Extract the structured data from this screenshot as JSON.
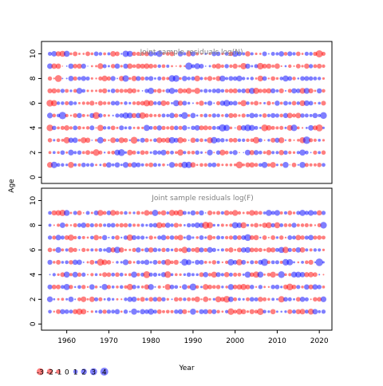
{
  "chart_data": [
    {
      "type": "scatter",
      "title": "Joint sample residuals log(N)",
      "xlabel": "",
      "ylabel": "Age",
      "xlim": [
        1954,
        2023
      ],
      "ylim": [
        -0.5,
        11
      ],
      "y_ticks": [
        "0",
        "2",
        "4",
        "6",
        "8",
        "10"
      ],
      "x_range_data": [
        1956,
        2021
      ],
      "ages": [
        1,
        2,
        3,
        4,
        5,
        6,
        7,
        8,
        9,
        10
      ],
      "encoding": "circle area proportional to |residual|; red = negative, blue = positive",
      "seed": 1729,
      "grid": false
    },
    {
      "type": "scatter",
      "title": "Joint sample residuals log(F)",
      "xlabel": "Year",
      "ylabel": "Age",
      "xlim": [
        1954,
        2023
      ],
      "ylim": [
        -0.5,
        11
      ],
      "y_ticks": [
        "0",
        "2",
        "4",
        "6",
        "8",
        "10"
      ],
      "x_ticks": [
        "1960",
        "1970",
        "1980",
        "1990",
        "2000",
        "2010",
        "2020"
      ],
      "x_range_data": [
        1956,
        2021
      ],
      "ages": [
        1,
        2,
        3,
        4,
        5,
        6,
        7,
        8,
        9
      ],
      "encoding": "circle area proportional to |residual|; red = negative, blue = positive",
      "seed": 4242,
      "grid": false
    }
  ],
  "shared_axis": {
    "ylabel": "Age",
    "xlabel": "Year"
  },
  "legend": {
    "position": "bottom-left",
    "entries": [
      {
        "label": "-3",
        "value": -3
      },
      {
        "label": "-2",
        "value": -2
      },
      {
        "label": "-1",
        "value": -1
      },
      {
        "label": "0",
        "value": 0
      },
      {
        "label": "1",
        "value": 1
      },
      {
        "label": "2",
        "value": 2
      },
      {
        "label": "3",
        "value": 3
      },
      {
        "label": "4",
        "value": 4
      }
    ]
  },
  "colors": {
    "negative": "#ff0000",
    "positive": "#0000ff",
    "axis": "#000000",
    "title_text": "#808080"
  }
}
